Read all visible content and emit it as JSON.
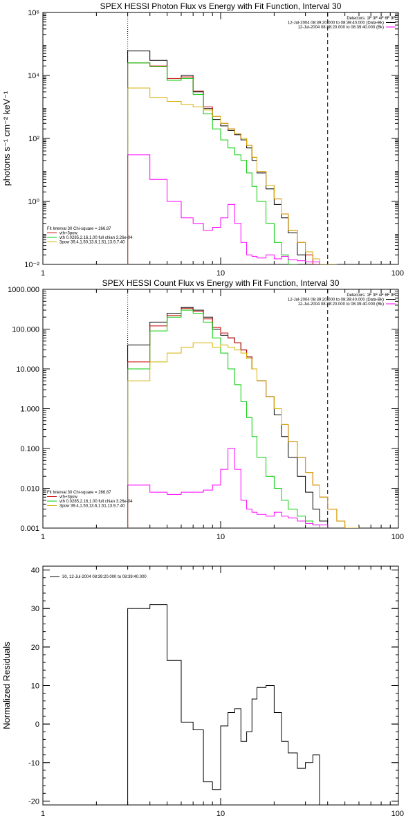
{
  "chart_data": [
    {
      "type": "line",
      "title": "SPEX HESSI Photon Flux vs Energy with Fit Function, Interval 30",
      "ylabel": "photons s⁻¹ cm⁻² keV⁻¹",
      "xscale": "log",
      "yscale": "log",
      "xlim": [
        1,
        100
      ],
      "ylim": [
        0.01,
        1000000
      ],
      "xticks": [
        {
          "v": 1,
          "label": "1"
        },
        {
          "v": 10,
          "label": "10"
        },
        {
          "v": 100,
          "label": "100"
        }
      ],
      "yticks": [
        {
          "v": 0.01,
          "label": "10⁻²"
        },
        {
          "v": 1,
          "label": "10⁰"
        },
        {
          "v": 100,
          "label": "10²"
        },
        {
          "v": 10000,
          "label": "10⁴"
        },
        {
          "v": 1000000,
          "label": "10⁶"
        }
      ],
      "vlines": [
        {
          "x": 3,
          "style": "dotted"
        },
        {
          "x": 40,
          "style": "dashed"
        }
      ],
      "legend_top_right": {
        "lines": [
          "Detectors: 1F 3F 4F 6F 9F",
          "12-Jul-2004 08:39:20.000 to 08:39:40.000 (Data-Bk)",
          "12-Jul-2004 08:38:20.000 to 08:39:40.000 (Bk)"
        ],
        "colors": [
          "",
          "#000000",
          "#ff00ff"
        ]
      },
      "legend_bottom_left": {
        "lines": [
          "Fit Interval 30   Chi-square = 266.87",
          "vth+3pow",
          "vth 0.0285,2.16,1.00  full chian 3.26e-04",
          "3pow 39.4,1.50,13.6,1.51,13.9,7.40"
        ],
        "colors": [
          "",
          "#cc0000",
          "#00cc00",
          "#d4b000"
        ]
      },
      "edges": [
        3,
        4,
        5,
        6,
        7,
        8,
        9,
        10,
        11,
        12,
        13,
        14,
        15,
        16,
        18,
        20,
        22,
        24,
        27,
        30,
        33,
        36,
        40,
        45,
        50,
        55
      ],
      "series": [
        {
          "color": "#000000",
          "values": [
            60000,
            30000,
            7000,
            10000,
            3000,
            900,
            400,
            250,
            180,
            130,
            90,
            50,
            20,
            8,
            2.5,
            0.8,
            0.3,
            0.1,
            0.02,
            0.01,
            0.01
          ]
        },
        {
          "color": "#cc0000",
          "values": [
            25000,
            20000,
            8000,
            9000,
            3200,
            1000,
            500,
            300,
            200,
            140,
            100,
            60,
            25,
            9,
            3.2,
            1.2,
            0.4,
            0.12,
            0.05,
            0.02,
            0.01,
            0.01
          ]
        },
        {
          "color": "#00cc00",
          "values": [
            25000,
            19000,
            7000,
            8000,
            2500,
            600,
            200,
            90,
            50,
            30,
            20,
            8,
            3,
            1,
            0.2,
            0.05,
            0.02,
            0.01
          ]
        },
        {
          "color": "#d4b000",
          "values": [
            4000,
            2000,
            1500,
            1200,
            1000,
            800,
            500,
            300,
            200,
            140,
            100,
            60,
            25,
            9,
            3.2,
            1.2,
            0.4,
            0.12,
            0.05,
            0.025,
            0.015,
            0.01,
            0.01
          ]
        },
        {
          "color": "#ff00ff",
          "values": [
            30,
            5,
            1,
            0.3,
            0.2,
            0.12,
            0.15,
            0.3,
            0.8,
            0.2,
            0.05,
            0.02,
            0.018,
            0.016,
            0.02,
            0.015,
            0.018,
            0.014,
            0.013,
            0.012,
            0.012
          ]
        }
      ]
    },
    {
      "type": "line",
      "title": "SPEX HESSI Count Flux vs Energy with Fit Function, Interval 30",
      "ylabel": "",
      "xscale": "log",
      "yscale": "log",
      "xlim": [
        1,
        100
      ],
      "ylim": [
        0.001,
        1000
      ],
      "xticks": [
        {
          "v": 1,
          "label": "1"
        },
        {
          "v": 10,
          "label": "10"
        },
        {
          "v": 100,
          "label": "100"
        }
      ],
      "yticks": [
        {
          "v": 0.001,
          "label": "0.001"
        },
        {
          "v": 0.01,
          "label": "0.010"
        },
        {
          "v": 0.1,
          "label": "0.100"
        },
        {
          "v": 1,
          "label": "1.000"
        },
        {
          "v": 10,
          "label": "10.000"
        },
        {
          "v": 100,
          "label": "100.000"
        },
        {
          "v": 1000,
          "label": "1000.000"
        }
      ],
      "vlines": [
        {
          "x": 3,
          "style": "dotted"
        },
        {
          "x": 40,
          "style": "dashed"
        }
      ],
      "legend_top_right": {
        "lines": [
          "Detectors: 1F 3F 4F 6F 9F",
          "12-Jul-2004 08:39:20.000 to 08:39:40.000 (Data-Bk)",
          "12-Jul-2004 08:38:20.000 to 08:39:40.000 (Bk)"
        ],
        "colors": [
          "",
          "#000000",
          "#ff00ff"
        ]
      },
      "legend_bottom_left": {
        "lines": [
          "Fit Interval 30   Chi-square = 266.87",
          "vth+3pow",
          "vth 0.0285,2.16,1.00  full chian 3.26e-04",
          "3pow 39.4,1.50,13.6,1.51,13.9,7.40"
        ],
        "colors": [
          "",
          "#cc0000",
          "#00cc00",
          "#d4b000"
        ]
      },
      "edges": [
        3,
        4,
        5,
        6,
        7,
        8,
        9,
        10,
        11,
        12,
        13,
        14,
        15,
        16,
        18,
        20,
        22,
        24,
        27,
        30,
        33,
        36,
        40,
        45,
        50,
        55,
        60
      ],
      "series": [
        {
          "color": "#000000",
          "values": [
            40,
            150,
            250,
            350,
            300,
            200,
            100,
            70,
            60,
            45,
            30,
            20,
            10,
            5,
            2,
            0.7,
            0.2,
            0.06,
            0.02,
            0.008,
            0.003,
            0.0015
          ]
        },
        {
          "color": "#cc0000",
          "values": [
            15,
            120,
            220,
            330,
            280,
            180,
            110,
            80,
            60,
            45,
            30,
            20,
            10,
            5,
            2,
            1,
            0.4,
            0.15,
            0.06,
            0.025,
            0.012,
            0.006,
            0.003,
            0.0015,
            0.001
          ]
        },
        {
          "color": "#00cc00",
          "values": [
            10,
            90,
            200,
            300,
            250,
            150,
            60,
            25,
            10,
            4,
            1.5,
            0.6,
            0.2,
            0.06,
            0.02,
            0.01,
            0.005,
            0.003,
            0.002,
            0.0015,
            0.0012
          ]
        },
        {
          "color": "#d4b000",
          "values": [
            5,
            15,
            25,
            35,
            45,
            45,
            35,
            40,
            35,
            30,
            25,
            18,
            10,
            5,
            2,
            1,
            0.4,
            0.15,
            0.06,
            0.025,
            0.012,
            0.006,
            0.003,
            0.0015,
            0.001,
            0.001
          ]
        },
        {
          "color": "#ff00ff",
          "values": [
            0.012,
            0.008,
            0.007,
            0.008,
            0.008,
            0.009,
            0.012,
            0.03,
            0.1,
            0.03,
            0.005,
            0.003,
            0.0025,
            0.0022,
            0.002,
            0.0025,
            0.002,
            0.0018,
            0.0015,
            0.0013,
            0.0012,
            0.0012
          ]
        }
      ]
    },
    {
      "type": "line",
      "title": "",
      "ylabel": "Normalized Residuals",
      "xscale": "log",
      "yscale": "linear",
      "xlim": [
        1,
        100
      ],
      "ylim": [
        -21,
        41
      ],
      "xticks": [
        {
          "v": 1,
          "label": "1"
        },
        {
          "v": 10,
          "label": "10"
        },
        {
          "v": 100,
          "label": "100"
        }
      ],
      "yticks": [
        {
          "v": -20,
          "label": "-20"
        },
        {
          "v": -10,
          "label": "-10"
        },
        {
          "v": 0,
          "label": "0"
        },
        {
          "v": 10,
          "label": "10"
        },
        {
          "v": 20,
          "label": "20"
        },
        {
          "v": 30,
          "label": "30"
        },
        {
          "v": 40,
          "label": "40"
        }
      ],
      "vlines": [],
      "legend_top_left": {
        "lines": [
          "30, 12-Jul-2004 08:39:20.000 to 08:39:40.000"
        ],
        "colors": [
          "#000000"
        ]
      },
      "edges": [
        3,
        4,
        5,
        6,
        7,
        8,
        9,
        10,
        11,
        12,
        13,
        14,
        15,
        16,
        18,
        20,
        22,
        24,
        27,
        30,
        33,
        36,
        40
      ],
      "series": [
        {
          "color": "#000000",
          "values": [
            30,
            31,
            16.5,
            0.5,
            -1.5,
            -15,
            -17,
            -0.5,
            3,
            4,
            -4.5,
            -2,
            6.5,
            9.5,
            10,
            3,
            -4.5,
            -7.5,
            -11.5,
            -10,
            -8
          ]
        }
      ]
    }
  ]
}
